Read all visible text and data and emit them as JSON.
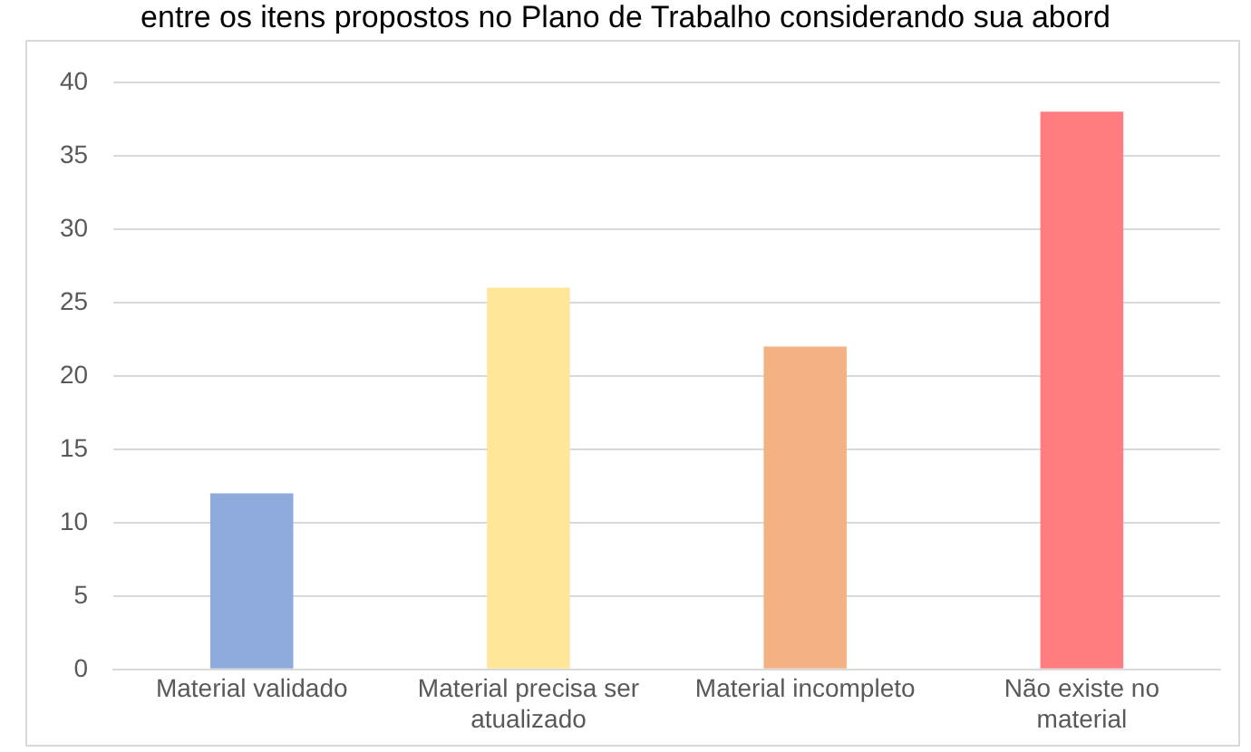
{
  "chart_data": {
    "type": "bar",
    "title": "entre os itens propostos no Plano de Trabalho considerando sua abord",
    "categories": [
      [
        "Material validado"
      ],
      [
        "Material precisa ser",
        "atualizado"
      ],
      [
        "Material incompleto"
      ],
      [
        "Não existe no",
        "material"
      ]
    ],
    "values": [
      12,
      26,
      22,
      38
    ],
    "colors": [
      "#8faadc",
      "#ffe699",
      "#f4b183",
      "#ff7c80"
    ],
    "ylim": [
      0,
      40
    ],
    "yticks": [
      0,
      5,
      10,
      15,
      20,
      25,
      30,
      35,
      40
    ],
    "grid": "y"
  }
}
